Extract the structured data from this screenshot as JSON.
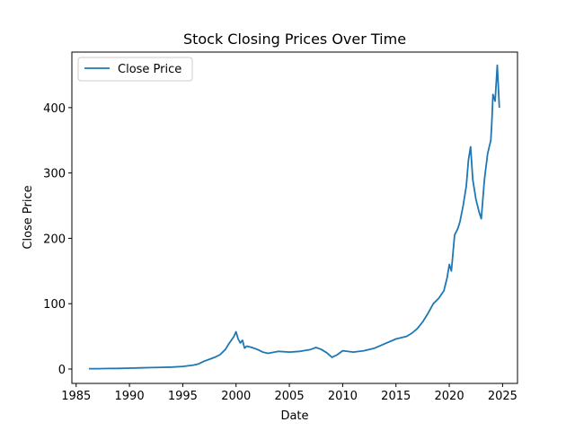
{
  "chart_data": {
    "type": "line",
    "title": "Stock Closing Prices Over Time",
    "xlabel": "Date",
    "ylabel": "Close Price",
    "xlim": [
      1984.6,
      2026.4
    ],
    "ylim": [
      -22,
      485
    ],
    "x_ticks": [
      1985,
      1990,
      1995,
      2000,
      2005,
      2010,
      2015,
      2020,
      2025
    ],
    "x_tick_labels": [
      "1985",
      "1990",
      "1995",
      "2000",
      "2005",
      "2010",
      "2015",
      "2020",
      "2025"
    ],
    "y_ticks": [
      0,
      100,
      200,
      300,
      400
    ],
    "y_tick_labels": [
      "0",
      "100",
      "200",
      "300",
      "400"
    ],
    "grid": false,
    "legend": {
      "position": "top-left",
      "entries": [
        "Close Price"
      ]
    },
    "series": [
      {
        "name": "Close Price",
        "color": "#1f77b4",
        "x": [
          1986.2,
          1987.0,
          1988.0,
          1989.0,
          1990.0,
          1991.0,
          1992.0,
          1993.0,
          1994.0,
          1995.0,
          1996.0,
          1996.5,
          1997.0,
          1997.5,
          1998.0,
          1998.5,
          1999.0,
          1999.3,
          1999.6,
          1999.8,
          2000.0,
          2000.2,
          2000.4,
          2000.6,
          2000.8,
          2001.0,
          2001.5,
          2002.0,
          2002.5,
          2003.0,
          2004.0,
          2005.0,
          2006.0,
          2007.0,
          2007.5,
          2008.0,
          2008.5,
          2009.0,
          2009.5,
          2010.0,
          2011.0,
          2012.0,
          2013.0,
          2014.0,
          2015.0,
          2016.0,
          2016.5,
          2017.0,
          2017.5,
          2018.0,
          2018.5,
          2019.0,
          2019.5,
          2019.8,
          2020.0,
          2020.2,
          2020.5,
          2020.8,
          2021.0,
          2021.3,
          2021.6,
          2021.8,
          2022.0,
          2022.2,
          2022.5,
          2022.8,
          2023.0,
          2023.3,
          2023.6,
          2023.9,
          2024.0,
          2024.1,
          2024.3,
          2024.5,
          2024.7
        ],
        "y": [
          0.5,
          0.6,
          0.8,
          1.0,
          1.3,
          1.8,
          2.2,
          2.6,
          3.0,
          4.0,
          6.0,
          8.0,
          12.0,
          15.0,
          18.0,
          22.0,
          30.0,
          38.0,
          45.0,
          50.0,
          57.0,
          46.0,
          40.0,
          44.0,
          32.0,
          35.0,
          33.0,
          30.0,
          26.0,
          24.0,
          27.0,
          26.0,
          27.0,
          30.0,
          33.0,
          30.0,
          25.0,
          18.0,
          22.0,
          28.0,
          26.0,
          28.0,
          32.0,
          39.0,
          46.0,
          50.0,
          55.0,
          62.0,
          72.0,
          85.0,
          100.0,
          108.0,
          120.0,
          140.0,
          160.0,
          150.0,
          205.0,
          215.0,
          225.0,
          250.0,
          280.0,
          320.0,
          340.0,
          290.0,
          260.0,
          240.0,
          230.0,
          290.0,
          330.0,
          350.0,
          380.0,
          420.0,
          410.0,
          465.0,
          400.0
        ]
      }
    ]
  }
}
